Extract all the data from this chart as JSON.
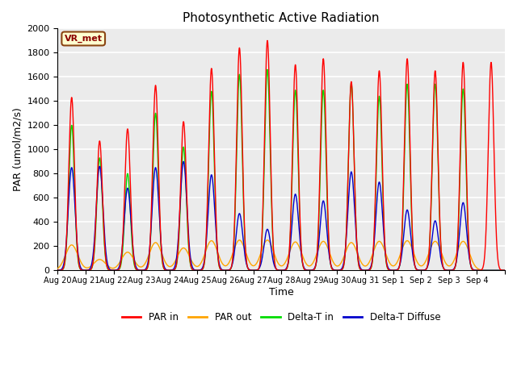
{
  "title": "Photosynthetic Active Radiation",
  "xlabel": "Time",
  "ylabel": "PAR (umol/m2/s)",
  "ylim": [
    0,
    2000
  ],
  "annotation": "VR_met",
  "plot_bg_color": "#ebebeb",
  "fig_bg_color": "#ffffff",
  "grid_color": "#ffffff",
  "series": {
    "PAR_in": {
      "color": "#ff0000",
      "label": "PAR in"
    },
    "PAR_out": {
      "color": "#ffa500",
      "label": "PAR out"
    },
    "DeltaT_in": {
      "color": "#00dd00",
      "label": "Delta-T in"
    },
    "DeltaT_diffuse": {
      "color": "#0000cc",
      "label": "Delta-T Diffuse"
    }
  },
  "days": [
    "Aug 20",
    "Aug 21",
    "Aug 22",
    "Aug 23",
    "Aug 24",
    "Aug 25",
    "Aug 26",
    "Aug 27",
    "Aug 28",
    "Aug 29",
    "Aug 30",
    "Aug 31",
    "Sep 1",
    "Sep 2",
    "Sep 3",
    "Sep 4"
  ],
  "n_days": 16,
  "pts_per_day": 144,
  "day_peaks": {
    "PAR_in": [
      1430,
      1070,
      1170,
      1530,
      1230,
      1670,
      1840,
      1900,
      1700,
      1750,
      1560,
      1650,
      1750,
      1650,
      1720,
      1720
    ],
    "PAR_out": [
      210,
      90,
      150,
      230,
      185,
      245,
      250,
      250,
      235,
      240,
      230,
      240,
      245,
      240,
      240,
      0
    ],
    "DeltaT_in": [
      1200,
      930,
      800,
      1300,
      1020,
      1480,
      1620,
      1660,
      1490,
      1490,
      1550,
      1440,
      1540,
      1540,
      1500,
      0
    ],
    "DeltaT_diffuse": [
      850,
      860,
      680,
      850,
      900,
      790,
      470,
      340,
      630,
      575,
      815,
      730,
      500,
      410,
      560,
      0
    ]
  },
  "cloudy_days": [
    1,
    2,
    3,
    4
  ],
  "yticks": [
    0,
    200,
    400,
    600,
    800,
    1000,
    1200,
    1400,
    1600,
    1800,
    2000
  ]
}
